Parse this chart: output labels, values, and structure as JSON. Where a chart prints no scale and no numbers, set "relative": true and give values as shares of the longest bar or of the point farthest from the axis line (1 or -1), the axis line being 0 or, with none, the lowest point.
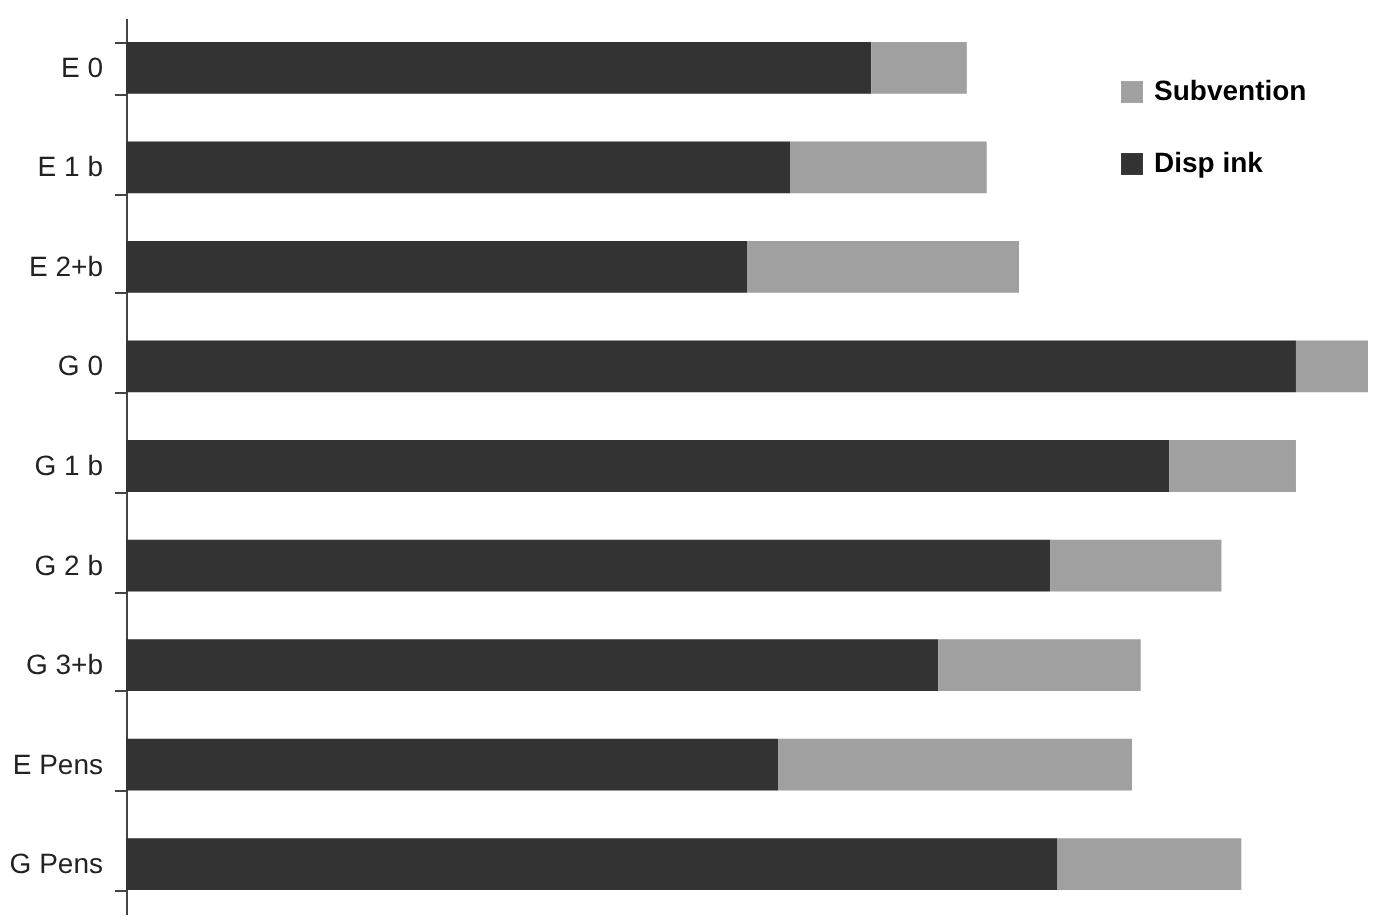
{
  "chart_data": {
    "type": "bar",
    "orientation": "horizontal",
    "stacked": true,
    "relative": true,
    "legend": "top right",
    "categories": [
      "E 0",
      "E 1 b",
      "E 2+b",
      "G 0",
      "G 1 b",
      "G 2 b",
      "G 3+b",
      "E Pens",
      "G Pens"
    ],
    "series": [
      {
        "name": "Disp ink",
        "color": "#333333",
        "values": [
          0.6,
          0.535,
          0.5,
          0.942,
          0.84,
          0.744,
          0.654,
          0.525,
          0.75
        ]
      },
      {
        "name": "Subvention",
        "color": "#a0a0a0",
        "values": [
          0.077,
          0.158,
          0.219,
          0.058,
          0.102,
          0.138,
          0.163,
          0.285,
          0.148
        ]
      }
    ]
  }
}
